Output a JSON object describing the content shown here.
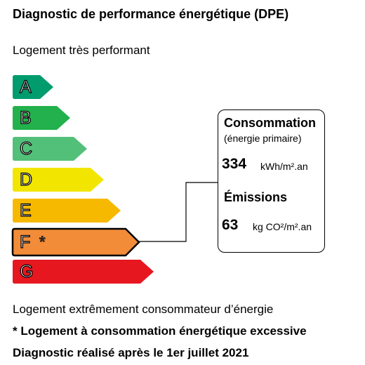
{
  "title": "Diagnostic de performance énergétique (DPE)",
  "top_label": "Logement très performant",
  "classes": [
    {
      "letter": "A",
      "color": "#009C6D"
    },
    {
      "letter": "B",
      "color": "#22B14C"
    },
    {
      "letter": "C",
      "color": "#52C079"
    },
    {
      "letter": "D",
      "color": "#F2E600"
    },
    {
      "letter": "E",
      "color": "#F7B900"
    },
    {
      "letter": "F",
      "color": "#F28C38"
    },
    {
      "letter": "G",
      "color": "#E6171F"
    }
  ],
  "current_class": "F",
  "current_marker": "*",
  "panel": {
    "consumption_label": "Consommation",
    "consumption_sub": "(énergie primaire)",
    "consumption_value": "334",
    "consumption_unit": "kWh/m².an",
    "emissions_label": "Émissions",
    "emissions_value": "63",
    "emissions_unit": "kg CO²/m².an"
  },
  "bottom_label": "Logement extrêmement consommateur d’énergie",
  "footnote": "* Logement à consommation énergétique excessive",
  "date_note": "Diagnostic réalisé après le 1er juillet 2021"
}
